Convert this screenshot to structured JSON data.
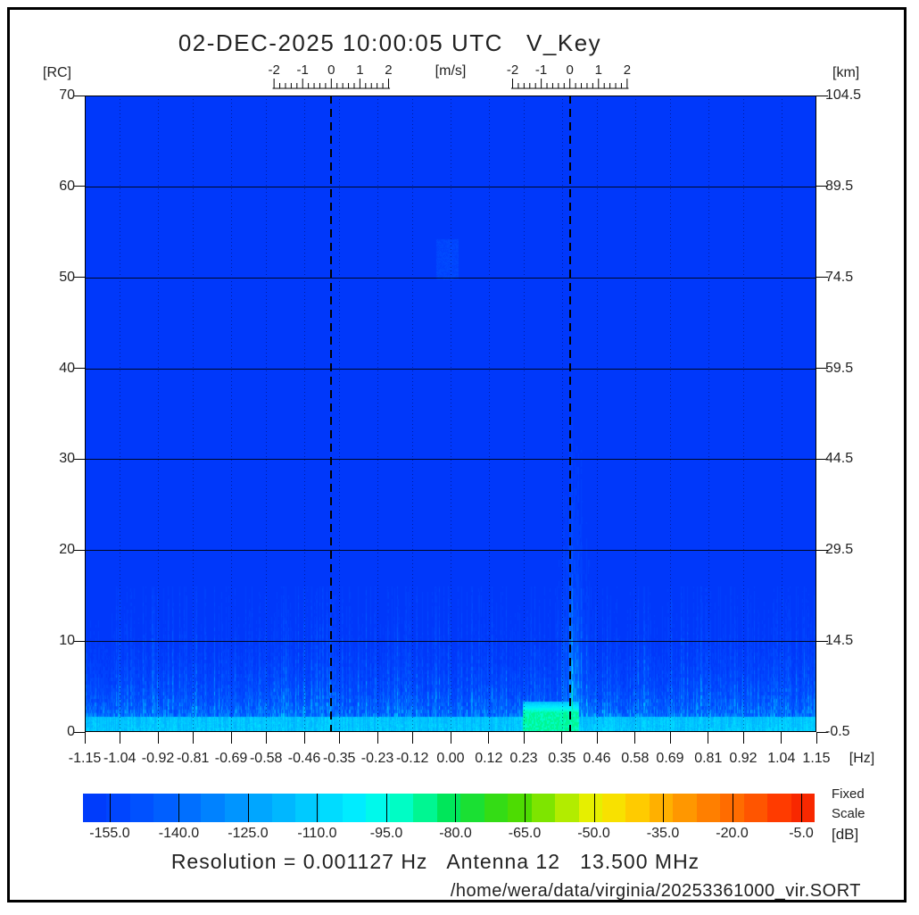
{
  "title": "02-DEC-2025 10:00:05 UTC   V_Key",
  "axes": {
    "left": {
      "unit": "[RC]",
      "ticks": [
        "70",
        "60",
        "50",
        "40",
        "30",
        "20",
        "10",
        "0"
      ]
    },
    "right": {
      "unit": "[km]",
      "ticks": [
        "104.5",
        "89.5",
        "74.5",
        "59.5",
        "44.5",
        "29.5",
        "14.5",
        "-0.5"
      ]
    },
    "bottom": {
      "unit": "[Hz]",
      "ticks": [
        "-1.15",
        "-1.04",
        "-0.92",
        "-0.81",
        "-0.69",
        "-0.58",
        "-0.46",
        "-0.35",
        "-0.23",
        "-0.12",
        "0.00",
        "0.12",
        "0.23",
        "0.35",
        "0.46",
        "0.58",
        "0.69",
        "0.81",
        "0.92",
        "1.04",
        "1.15"
      ]
    },
    "top_rulers": {
      "unit": "[m/s]",
      "tick_labels": [
        "-2",
        "-1",
        "0",
        "1",
        "2"
      ]
    }
  },
  "colorbar": {
    "tick_labels": [
      "-155.0",
      "-140.0",
      "-125.0",
      "-110.0",
      "-95.0",
      "-80.0",
      "-65.0",
      "-50.0",
      "-35.0",
      "-20.0",
      "-5.0"
    ],
    "unit": "[dB]",
    "scale_line1": "Fixed",
    "scale_line2": "Scale",
    "gradient_stops": [
      [
        0.0,
        "#0038FA"
      ],
      [
        0.06,
        "#0048FF"
      ],
      [
        0.13,
        "#0066FF"
      ],
      [
        0.2,
        "#0090FF"
      ],
      [
        0.27,
        "#00B4FF"
      ],
      [
        0.33,
        "#00D8FF"
      ],
      [
        0.38,
        "#00F0FF"
      ],
      [
        0.42,
        "#00FFDC"
      ],
      [
        0.46,
        "#00FAA0"
      ],
      [
        0.5,
        "#00E65A"
      ],
      [
        0.55,
        "#28DC1E"
      ],
      [
        0.6,
        "#50DC00"
      ],
      [
        0.65,
        "#A0EB00"
      ],
      [
        0.7,
        "#F0F000"
      ],
      [
        0.75,
        "#FFD200"
      ],
      [
        0.8,
        "#FFA800"
      ],
      [
        0.85,
        "#FF8200"
      ],
      [
        0.9,
        "#FF6400"
      ],
      [
        0.95,
        "#FF3C00"
      ],
      [
        1.0,
        "#F51E00"
      ]
    ]
  },
  "footer": {
    "info_line": "Resolution = 0.001127 Hz   Antenna 12   13.500 MHz",
    "file_path": "/home/wera/data/virginia/20253361000_vir.SORT"
  },
  "chart_data": {
    "type": "heatmap",
    "title": "02-DEC-2025 10:00:05 UTC   V_Key",
    "xlabel": "[Hz]",
    "ylabel_left": "[RC]",
    "ylabel_right": "[km]",
    "xlim": [
      -1.15,
      1.15
    ],
    "ylim_rc": [
      0,
      70
    ],
    "ylim_km": [
      -0.5,
      104.5
    ],
    "x_tick_values": [
      -1.15,
      -1.04,
      -0.92,
      -0.81,
      -0.69,
      -0.58,
      -0.46,
      -0.35,
      -0.23,
      -0.12,
      0.0,
      0.12,
      0.23,
      0.35,
      0.46,
      0.58,
      0.69,
      0.81,
      0.92,
      1.04,
      1.15
    ],
    "grid_rc_lines": [
      10,
      20,
      30,
      40,
      50,
      60
    ],
    "bragg_lines_hz": [
      -0.375,
      0.375
    ],
    "velocity_ruler": {
      "major_ticks": [
        -2,
        -1,
        0,
        1,
        2
      ],
      "minor_step_ms": 0.2,
      "half_extent_ms": 2.05,
      "hz_per_ms": 0.09
    },
    "colorbar_scale": {
      "mode": "Fixed Scale",
      "units": "[dB]",
      "range_db": [
        -160.8,
        -2.1
      ],
      "tick_values_db": [
        -155,
        -140,
        -125,
        -110,
        -95,
        -80,
        -65,
        -50,
        -35,
        -20,
        -5
      ],
      "n_segments": 31,
      "segment_width_db": 5
    },
    "annotations": {
      "resolution_hz": 0.001127,
      "antenna": 12,
      "frequency_mhz": 13.5,
      "file": "/home/wera/data/virginia/20253361000_vir.SORT"
    },
    "features": {
      "background_db": -159,
      "noise_floor": {
        "rc_max": 16,
        "col_amp_db_min": 24,
        "col_amp_db_max": 50,
        "cap_db": 52
      },
      "bottom_band": {
        "rc_max": 1.7,
        "db": -124
      },
      "bragg_blob": {
        "f_min": 0.228,
        "f_max": 0.405,
        "rc_max": 3.3,
        "db": -91
      },
      "plume": {
        "f_center": 0.388,
        "sigma_hz": 0.014,
        "halo_sigma_hz": 0.04,
        "rc_max": 35,
        "amp_db": 58,
        "halo_amp_db": 26,
        "rc_decay": 11
      },
      "left_bragg_ridge": {
        "f_center": -0.378,
        "sigma_hz": 0.005,
        "rc_max": 14,
        "amp_db": 32,
        "rc_decay": 6
      },
      "faint_patch": {
        "f_center": -0.01,
        "f_halfwidth": 0.035,
        "rc_center": 52,
        "rc_halfwidth": 2.2,
        "db": -152
      }
    }
  }
}
